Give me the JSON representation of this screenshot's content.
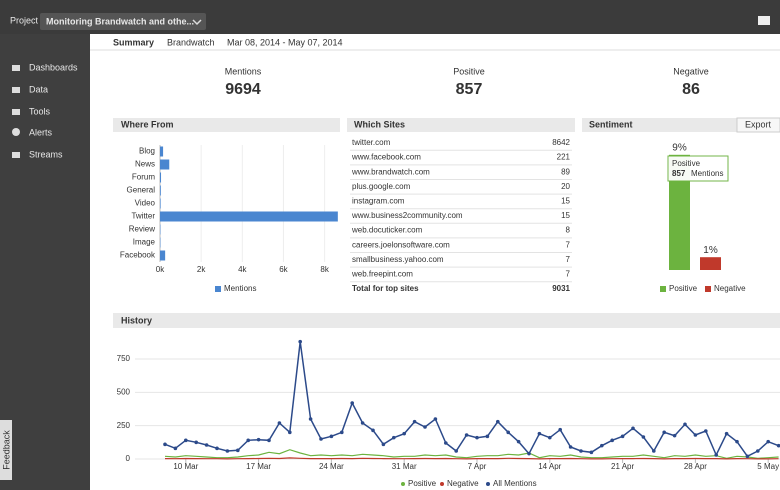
{
  "topbar": {
    "project_label": "Project",
    "project_name": "Monitoring Brandwatch and othe..."
  },
  "sidebar": {
    "items": [
      "Dashboards",
      "Data",
      "Tools",
      "Alerts",
      "Streams"
    ],
    "feedback": "Feedback"
  },
  "tabs": [
    "Summary",
    "Brandwatch"
  ],
  "date_range": "Mar 08, 2014 - May 07, 2014",
  "stats": [
    {
      "label": "Mentions",
      "value": 9694,
      "color": "#2e86c1"
    },
    {
      "label": "Positive",
      "value": 857,
      "color": "#6cb33f"
    },
    {
      "label": "Negative",
      "value": 86,
      "color": "#c0392b"
    }
  ],
  "which_sites": {
    "title": "Which Sites",
    "rows": [
      [
        "twitter.com",
        8642
      ],
      [
        "www.facebook.com",
        221
      ],
      [
        "www.brandwatch.com",
        89
      ],
      [
        "plus.google.com",
        20
      ],
      [
        "instagram.com",
        15
      ],
      [
        "www.business2community.com",
        15
      ],
      [
        "web.docuticker.com",
        8
      ],
      [
        "careers.joelonsoftware.com",
        7
      ],
      [
        "smallbusiness.yahoo.com",
        7
      ],
      [
        "web.freepint.com",
        7
      ]
    ],
    "total_label": "Total for top sites",
    "total": 9031
  },
  "chart_data": [
    {
      "type": "hbar",
      "title": "Where From",
      "categories": [
        "Blog",
        "News",
        "Forum",
        "General",
        "Video",
        "Twitter",
        "Review",
        "Image",
        "Facebook"
      ],
      "series": [
        {
          "name": "Mentions",
          "color": "#4a86d0",
          "values": [
            150,
            450,
            50,
            40,
            30,
            8642,
            20,
            20,
            250
          ]
        }
      ],
      "xlim": [
        0,
        8650
      ],
      "xticks": [
        {
          "value": 0,
          "label": "0k"
        },
        {
          "value": 2000,
          "label": "2k"
        },
        {
          "value": 4000,
          "label": "4k"
        },
        {
          "value": 6000,
          "label": "6k"
        },
        {
          "value": 8000,
          "label": "8k"
        }
      ],
      "grid": true
    },
    {
      "type": "bar",
      "title": "Sentiment",
      "export": "Export",
      "categories": [
        "Positive",
        "Negative"
      ],
      "values": [
        9,
        1
      ],
      "value_labels": [
        "9%",
        "1%"
      ],
      "colors": [
        "#6cb33f",
        "#c0392b"
      ],
      "ylim": [
        0,
        10
      ],
      "tooltip": {
        "title": "Positive",
        "value": 857,
        "unit": "Mentions"
      }
    },
    {
      "type": "line",
      "title": "History",
      "categories": [
        null,
        null,
        "10 Mar",
        null,
        null,
        null,
        null,
        null,
        null,
        "17 Mar",
        null,
        null,
        null,
        null,
        null,
        null,
        "24 Mar",
        null,
        null,
        null,
        null,
        null,
        null,
        "31 Mar",
        null,
        null,
        null,
        null,
        null,
        null,
        "7 Apr",
        null,
        null,
        null,
        null,
        null,
        null,
        "14 Apr",
        null,
        null,
        null,
        null,
        null,
        null,
        "21 Apr",
        null,
        null,
        null,
        null,
        null,
        null,
        "28 Apr",
        null,
        null,
        null,
        null,
        null,
        null,
        "5 May",
        null
      ],
      "series": [
        {
          "name": "Positive",
          "color": "#6cb33f",
          "values": [
            20,
            15,
            25,
            20,
            15,
            10,
            10,
            15,
            25,
            30,
            50,
            40,
            70,
            45,
            25,
            30,
            25,
            30,
            25,
            35,
            30,
            25,
            15,
            20,
            20,
            30,
            25,
            30,
            15,
            10,
            20,
            25,
            25,
            35,
            30,
            45,
            10,
            25,
            20,
            30,
            15,
            10,
            10,
            15,
            20,
            20,
            30,
            20,
            10,
            25,
            20,
            30,
            20,
            25,
            5,
            20,
            15,
            5,
            10,
            15
          ]
        },
        {
          "name": "Negative",
          "color": "#c0392b",
          "values": [
            3,
            2,
            4,
            3,
            2,
            2,
            1,
            2,
            3,
            4,
            5,
            4,
            8,
            5,
            3,
            3,
            3,
            4,
            3,
            5,
            4,
            3,
            2,
            2,
            3,
            4,
            3,
            4,
            2,
            1,
            3,
            3,
            3,
            5,
            4,
            3,
            1,
            3,
            3,
            4,
            2,
            1,
            1,
            2,
            3,
            3,
            4,
            3,
            1,
            3,
            3,
            4,
            3,
            3,
            1,
            3,
            2,
            1,
            1,
            2
          ]
        },
        {
          "name": "All Mentions",
          "color": "#2c4a8a",
          "values": [
            110,
            80,
            140,
            125,
            105,
            80,
            60,
            65,
            140,
            145,
            140,
            270,
            200,
            880,
            300,
            150,
            170,
            200,
            420,
            270,
            215,
            110,
            160,
            190,
            280,
            240,
            300,
            120,
            60,
            180,
            160,
            170,
            280,
            200,
            130,
            40,
            190,
            160,
            220,
            90,
            60,
            50,
            100,
            140,
            170,
            230,
            165,
            60,
            200,
            175,
            260,
            180,
            210,
            30,
            190,
            130,
            20,
            60,
            130,
            100
          ]
        }
      ],
      "ylim": [
        0,
        900
      ],
      "yticks": [
        0,
        250,
        500,
        750
      ],
      "grid": true
    }
  ]
}
